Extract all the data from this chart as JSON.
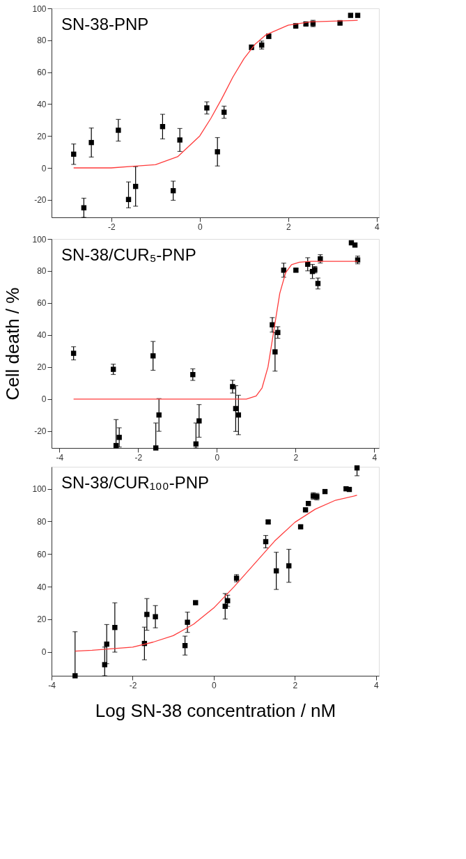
{
  "chart_data": [
    {
      "type": "scatter",
      "title": "SN-38-PNP",
      "marker": "square",
      "grid": false,
      "xlim": [
        -3.35,
        4.05
      ],
      "xticks": [
        -2,
        0,
        2,
        4
      ],
      "ylim": [
        -31,
        100
      ],
      "yticks": [
        -20,
        0,
        20,
        40,
        60,
        80,
        100
      ],
      "series": [
        {
          "color": "#000000",
          "x": [
            -2.85,
            -2.62,
            -2.45,
            -1.84,
            -1.61,
            -1.45,
            -0.84,
            -0.6,
            -0.45,
            0.16,
            0.4,
            0.55,
            1.17,
            1.4,
            1.56,
            2.17,
            2.4,
            2.56,
            3.17,
            3.41,
            3.57
          ],
          "values": [
            8.6,
            -25,
            15.9,
            23.6,
            -19.8,
            -11.6,
            25.9,
            -14.3,
            17.5,
            37.6,
            10.1,
            34.9,
            75.6,
            77,
            82.5,
            89,
            90.2,
            90.5,
            90.9,
            95.6,
            95.6
          ],
          "errors": [
            6.4,
            6,
            9.1,
            6.8,
            [
              -25,
              -8.8
            ],
            12.4,
            7.7,
            6,
            7.2,
            3.8,
            8.9,
            3.8,
            1.5,
            2.5,
            1.5,
            1.5,
            1,
            2,
            1.5,
            null,
            null
          ]
        },
        {
          "type": "line",
          "color": "#ff3b3b",
          "marker": "none",
          "x": [
            -2.85,
            -2,
            -1.5,
            -1,
            -0.5,
            0,
            0.25,
            0.5,
            0.75,
            1,
            1.25,
            1.5,
            2,
            2.5,
            3,
            3.57
          ],
          "values": [
            0,
            0,
            1,
            2,
            7,
            20,
            31,
            43.5,
            57,
            68.5,
            77.5,
            83.5,
            89.5,
            91.5,
            92,
            92.5
          ]
        }
      ]
    },
    {
      "type": "scatter",
      "title": "SN-38/CUR₅-PNP",
      "ylabel": "Cell death / %",
      "marker": "square",
      "grid": false,
      "xlim": [
        -4.2,
        4.12
      ],
      "xticks": [
        -4,
        -2,
        0,
        2,
        4
      ],
      "ylim": [
        -30.5,
        100
      ],
      "yticks": [
        -20,
        0,
        20,
        40,
        60,
        80,
        100
      ],
      "series": [
        {
          "color": "#000000",
          "x": [
            -3.64,
            -2.63,
            -2.56,
            -2.48,
            -1.62,
            -1.55,
            -1.47,
            -0.61,
            -0.53,
            -0.45,
            0.4,
            0.48,
            0.55,
            1.41,
            1.48,
            1.55,
            1.7,
            2.01,
            2.31,
            2.43,
            2.49,
            2.57,
            2.63,
            3.42,
            3.51,
            3.58
          ],
          "values": [
            28.6,
            18.6,
            -29,
            -23.9,
            27,
            -30.5,
            -9.9,
            15.3,
            -28,
            -13.6,
            7.8,
            -5.9,
            -9.9,
            46.4,
            29.5,
            41.6,
            80.5,
            80.5,
            84.2,
            79.7,
            80.8,
            72.2,
            87.6,
            97.6,
            96.2,
            86.9
          ],
          "errors": [
            4.1,
            3.2,
            [
              -30.5,
              -12.8
            ],
            6,
            9,
            [
              -30.5,
              -14.9
            ],
            10.2,
            3.6,
            [
              -30.5,
              -14.9
            ],
            10.2,
            4,
            14.3,
            12.3,
            4.5,
            12,
            3.6,
            4.4,
            1,
            4.1,
            4.4,
            2,
            3.4,
            2.6,
            null,
            null,
            2.4
          ]
        },
        {
          "type": "line",
          "color": "#ff3b3b",
          "marker": "none",
          "x": [
            -3.64,
            -2,
            -1,
            0,
            0.5,
            0.75,
            1,
            1.15,
            1.3,
            1.45,
            1.6,
            1.75,
            1.9,
            2.1,
            2.4,
            3,
            3.58
          ],
          "values": [
            0,
            0,
            0,
            0,
            0,
            0,
            2,
            7,
            20,
            43,
            66,
            79,
            84,
            85.5,
            86,
            86,
            86
          ]
        }
      ]
    },
    {
      "type": "scatter",
      "title": "SN-38/CUR₁₀₀-PNP",
      "xlabel": "Log SN-38 concentration / nM",
      "marker": "square",
      "grid": false,
      "xlim": [
        -4,
        4.07
      ],
      "xticks": [
        -4,
        -2,
        0,
        2,
        4
      ],
      "ylim": [
        -14.6,
        113.5
      ],
      "yticks": [
        0,
        20,
        40,
        60,
        80,
        100
      ],
      "series": [
        {
          "color": "#000000",
          "x": [
            -3.42,
            -2.69,
            -2.64,
            -2.44,
            -1.71,
            -1.65,
            -1.44,
            -0.71,
            -0.65,
            -0.45,
            0.28,
            0.34,
            0.56,
            1.28,
            1.34,
            1.54,
            1.85,
            2.14,
            2.26,
            2.33,
            2.45,
            2.54,
            2.74,
            3.26,
            3.34,
            3.53
          ],
          "values": [
            -14.6,
            -7.8,
            4.8,
            15,
            5.2,
            23,
            21.6,
            3.9,
            18.2,
            30.2,
            28,
            31.4,
            45.2,
            67.6,
            79.7,
            49.7,
            52.8,
            76.7,
            87.1,
            91,
            95.6,
            95.2,
            98.3,
            100,
            99.6,
            112.8
          ],
          "errors": [
            [
              -14.6,
              12.4
            ],
            [
              -14.6,
              3
            ],
            12,
            15.1,
            10,
            9.7,
            6.8,
            5.8,
            6.2,
            null,
            7.8,
            3.4,
            2.2,
            3.8,
            1,
            11.4,
            10.1,
            1,
            null,
            null,
            2,
            2,
            1,
            1,
            null,
            [
              108,
              113.5
            ]
          ]
        },
        {
          "type": "line",
          "color": "#ff3b3b",
          "marker": "none",
          "x": [
            -3.42,
            -3,
            -2.5,
            -2,
            -1.5,
            -1,
            -0.5,
            0,
            0.5,
            1,
            1.5,
            2,
            2.5,
            3,
            3.53
          ],
          "values": [
            0.5,
            1,
            2,
            3,
            6,
            10,
            17,
            27,
            40,
            54,
            68,
            79.5,
            87.5,
            93,
            96
          ]
        }
      ]
    }
  ]
}
